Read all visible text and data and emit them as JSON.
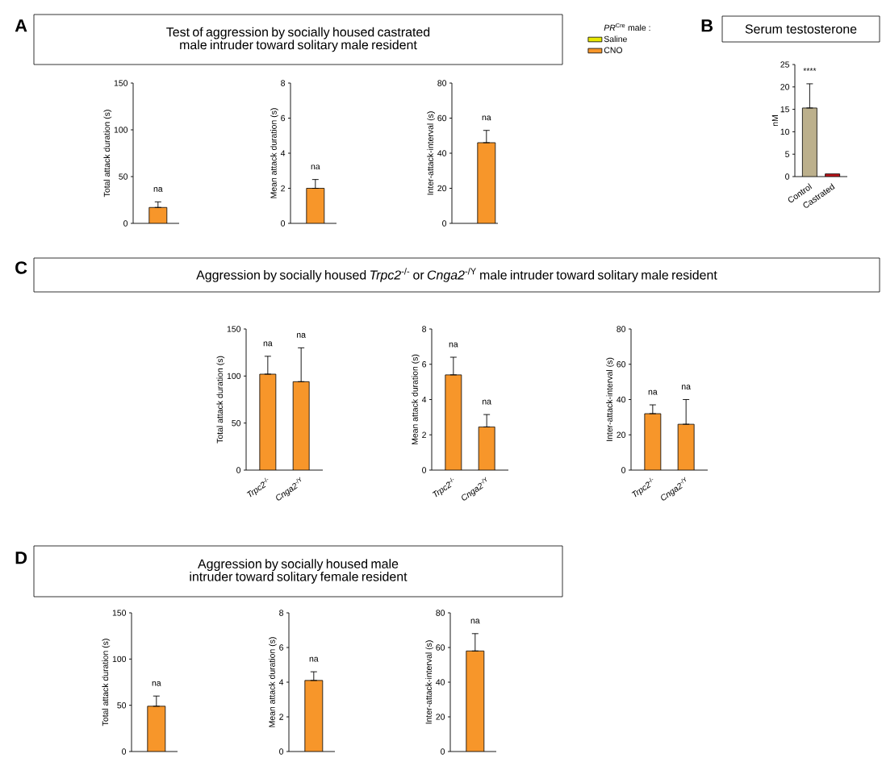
{
  "chart_data": [
    {
      "type": "other",
      "title": "Test of aggression by socially housed castrated male intruder toward solitary male resident",
      "annotations": [
        "A"
      ]
    },
    {
      "type": "bar",
      "ylabel": "Total attack duration (s)",
      "categories": [
        null
      ],
      "values": [
        17
      ],
      "errors": [
        [
          17,
          23
        ]
      ],
      "color": "#f7962a",
      "ylim": [
        0,
        150
      ],
      "yticks": [
        0,
        50,
        100,
        150
      ],
      "annotations": [
        "na"
      ]
    },
    {
      "type": "bar",
      "ylabel": "Mean attack duration (s)",
      "categories": [
        null
      ],
      "values": [
        2.0
      ],
      "errors": [
        [
          2.0,
          2.5
        ]
      ],
      "color": "#f7962a",
      "ylim": [
        0,
        8
      ],
      "yticks": [
        0,
        2,
        4,
        6,
        8
      ],
      "annotations": [
        "na"
      ]
    },
    {
      "type": "bar",
      "ylabel": "Inter-attack-interval (s)",
      "categories": [
        null
      ],
      "ylim": [
        0,
        80
      ],
      "yticks": [
        0,
        20,
        40,
        60,
        80
      ],
      "legend": "top right",
      "legend_title": "*PR*$^{Cre}$ male :",
      "series": [
        {
          "name": "Saline",
          "color": "#e8e800",
          "values": [
            null
          ]
        },
        {
          "name": "CNO",
          "color": "#f7962a",
          "values": [
            46
          ],
          "errors": [
            [
              46,
              53
            ]
          ]
        }
      ],
      "annotations": [
        "na"
      ]
    },
    {
      "type": "bar",
      "title": "Serum testosterone",
      "ylabel": "nM",
      "categories": [
        "Control",
        "Castrated"
      ],
      "values": [
        15.3,
        0.6
      ],
      "errors": [
        [
          15.3,
          20.7
        ],
        null
      ],
      "colors": [
        "#bcb08c",
        "#c0141b"
      ],
      "ylim": [
        0,
        25
      ],
      "yticks": [
        0,
        5,
        10,
        15,
        20,
        25
      ],
      "annotations": [
        "B",
        "****"
      ]
    },
    {
      "type": "other",
      "title": "Aggression by socially housed *Trpc2*$^{-/-}$ or *Cnga2*$^{-/Y}$ male intruder toward solitary male resident",
      "annotations": [
        "C"
      ]
    },
    {
      "type": "bar",
      "ylabel": "Total attack duration (s)",
      "categories": [
        "*Trpc2*$^{-/-}$",
        "*Cnga2*$^{-/Y}$"
      ],
      "values": [
        102,
        94
      ],
      "errors": [
        [
          102,
          121
        ],
        [
          94,
          130
        ]
      ],
      "color": "#f7962a",
      "ylim": [
        0,
        150
      ],
      "yticks": [
        0,
        50,
        100,
        150
      ],
      "annotations": [
        "na",
        "na"
      ]
    },
    {
      "type": "bar",
      "ylabel": "Mean attack duration (s)",
      "categories": [
        "*Trpc2*$^{-/-}$",
        "*Cnga2*$^{-/Y}$"
      ],
      "values": [
        5.4,
        2.45
      ],
      "errors": [
        [
          5.4,
          6.4
        ],
        [
          2.45,
          3.15
        ]
      ],
      "color": "#f7962a",
      "ylim": [
        0,
        8
      ],
      "yticks": [
        0,
        2,
        4,
        6,
        8
      ],
      "annotations": [
        "na",
        "na"
      ]
    },
    {
      "type": "bar",
      "ylabel": "Inter-attack-interval (s)",
      "categories": [
        "*Trpc2*$^{-/-}$",
        "*Cnga2*$^{-/Y}$"
      ],
      "values": [
        32,
        26
      ],
      "errors": [
        [
          32,
          37
        ],
        [
          26,
          40
        ]
      ],
      "color": "#f7962a",
      "ylim": [
        0,
        80
      ],
      "yticks": [
        0,
        20,
        40,
        60,
        80
      ],
      "annotations": [
        "na",
        "na"
      ]
    },
    {
      "type": "other",
      "title": "Aggression by socially housed male intruder toward solitary female resident",
      "annotations": [
        "D"
      ]
    },
    {
      "type": "bar",
      "ylabel": "Total attack duration (s)",
      "categories": [
        null
      ],
      "values": [
        49
      ],
      "errors": [
        [
          49,
          60
        ]
      ],
      "color": "#f7962a",
      "ylim": [
        0,
        150
      ],
      "yticks": [
        0,
        50,
        100,
        150
      ],
      "annotations": [
        "na"
      ]
    },
    {
      "type": "bar",
      "ylabel": "Mean attack duration (s)",
      "categories": [
        null
      ],
      "values": [
        4.1
      ],
      "errors": [
        [
          4.1,
          4.6
        ]
      ],
      "color": "#f7962a",
      "ylim": [
        0,
        8
      ],
      "yticks": [
        0,
        2,
        4,
        6,
        8
      ],
      "annotations": [
        "na"
      ]
    },
    {
      "type": "bar",
      "ylabel": "Inter-attack-interval (s)",
      "categories": [
        null
      ],
      "values": [
        58
      ],
      "errors": [
        [
          58,
          68
        ]
      ],
      "color": "#f7962a",
      "ylim": [
        0,
        80
      ],
      "yticks": [
        0,
        20,
        40,
        60,
        80
      ],
      "annotations": [
        "na"
      ]
    }
  ]
}
